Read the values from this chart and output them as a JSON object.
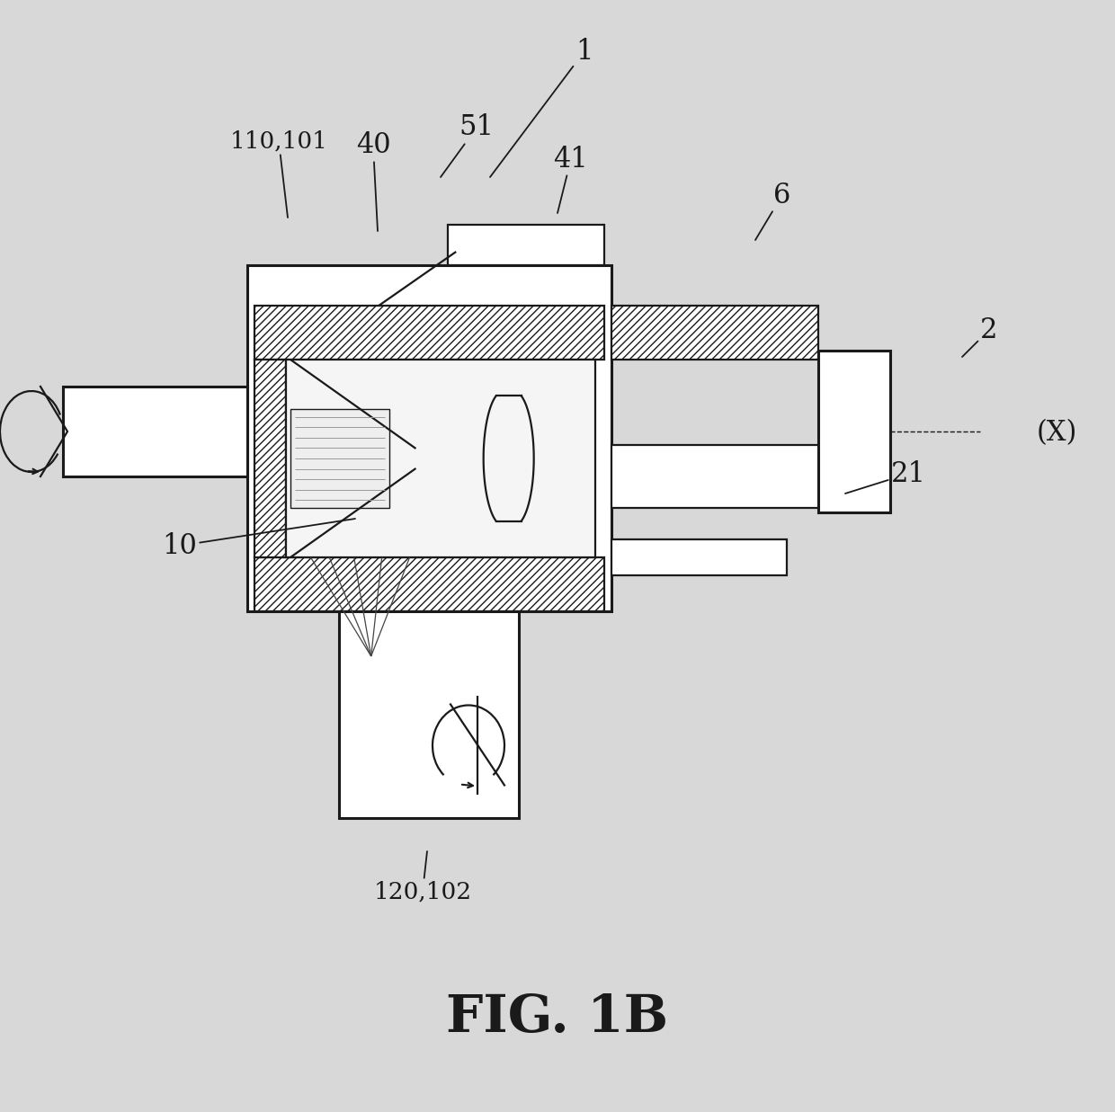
{
  "bg_color": "#d8d8d8",
  "line_color": "#1a1a1a",
  "fig_label": "FIG. 1B",
  "lw": 1.6,
  "lw_thick": 2.2,
  "lw_thin": 1.0
}
